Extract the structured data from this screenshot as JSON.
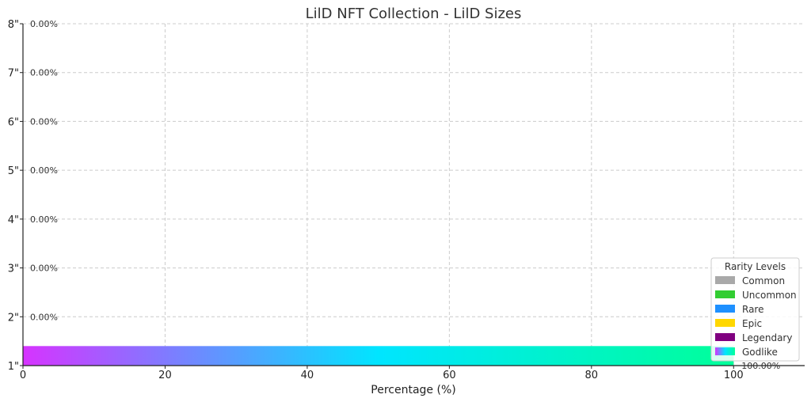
{
  "chart_data": {
    "type": "bar",
    "orientation": "horizontal",
    "title": "LilD NFT Collection - LilD Sizes",
    "xlabel": "Percentage (%)",
    "ylabel": "",
    "xlim": [
      0,
      110
    ],
    "x_ticks": [
      0,
      20,
      40,
      60,
      80,
      100
    ],
    "grid": true,
    "categories": [
      "1\"",
      "2\"",
      "3\"",
      "4\"",
      "5\"",
      "6\"",
      "7\"",
      "8\""
    ],
    "values": [
      100,
      0,
      0,
      0,
      0,
      0,
      0,
      0
    ],
    "value_labels": [
      "100.00%",
      "0.00%",
      "0.00%",
      "0.00%",
      "0.00%",
      "0.00%",
      "0.00%",
      "0.00%"
    ],
    "bar_rarity": [
      "Godlike",
      "",
      "",
      "",
      "",
      "",
      "",
      ""
    ],
    "legend": {
      "title": "Rarity Levels",
      "placement": "bottom-right",
      "entries": [
        {
          "name": "Common",
          "color": "#a9a9a9"
        },
        {
          "name": "Uncommon",
          "color": "#32cd32"
        },
        {
          "name": "Rare",
          "color": "#1e90ff"
        },
        {
          "name": "Epic",
          "color": "#ffd700"
        },
        {
          "name": "Legendary",
          "color": "#800080"
        },
        {
          "name": "Godlike",
          "gradient": [
            "#d633ff",
            "#00e5ff",
            "#00ff99"
          ]
        }
      ]
    },
    "godlike_gradient": [
      "#d633ff",
      "#00e5ff",
      "#00ff99"
    ]
  }
}
